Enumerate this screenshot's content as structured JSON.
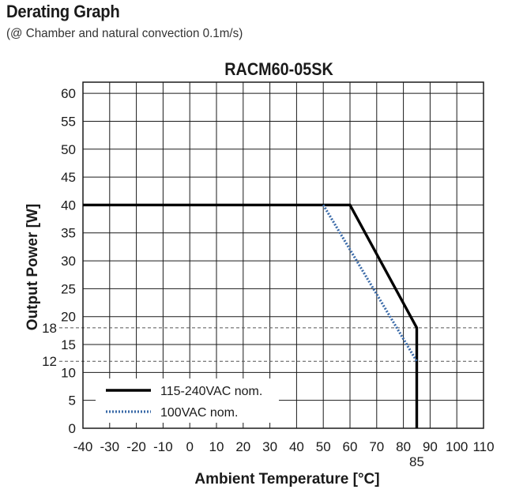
{
  "header": {
    "title": "Derating Graph",
    "subtitle": "(@ Chamber and natural convection 0.1m/s)"
  },
  "chart_data": {
    "type": "line",
    "title": "RACM60-05SK",
    "xlabel": "Ambient Temperature [°C]",
    "ylabel": "Output Power [W]",
    "xlim": [
      -40,
      110
    ],
    "ylim": [
      0,
      62
    ],
    "x_ticks": [
      -40,
      -30,
      -20,
      -10,
      0,
      10,
      20,
      30,
      40,
      50,
      60,
      70,
      80,
      90,
      100,
      110
    ],
    "y_ticks": [
      0,
      5,
      10,
      15,
      20,
      25,
      30,
      35,
      40,
      45,
      50,
      55,
      60
    ],
    "extra_y_ticks": [
      18,
      12
    ],
    "extra_x_ticks": [
      85
    ],
    "grid": true,
    "legend_position": "bottom-left",
    "series": [
      {
        "name": "115-240VAC nom.",
        "style": "solid",
        "color": "#000000",
        "x": [
          -40,
          60,
          85,
          85
        ],
        "y": [
          40,
          40,
          18,
          0
        ]
      },
      {
        "name": "100VAC nom.",
        "style": "dotted",
        "color": "#3a6aa8",
        "x": [
          50,
          85
        ],
        "y": [
          40,
          12
        ]
      }
    ]
  }
}
